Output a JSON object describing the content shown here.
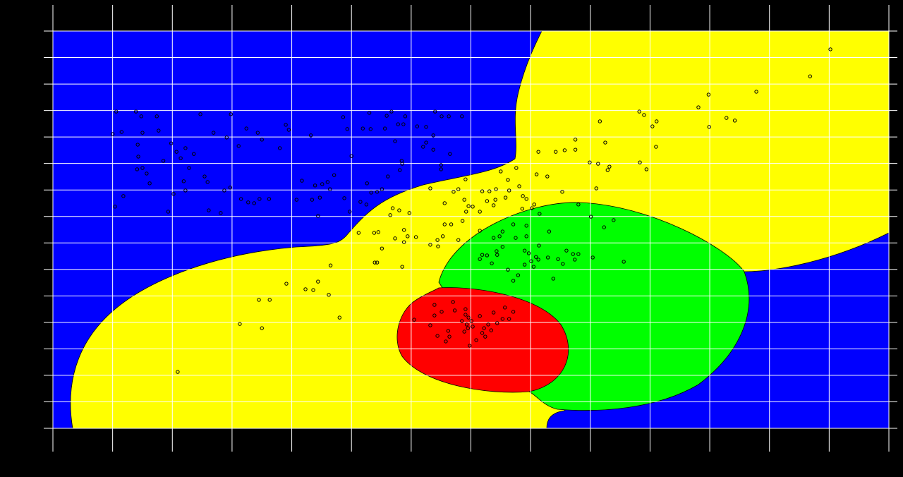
{
  "chart_data": {
    "type": "scatter",
    "x": [
      106,
      139,
      148,
      174,
      100,
      115,
      150,
      177,
      142,
      143,
      141,
      150,
      157,
      162,
      185,
      198,
      207,
      214,
      222,
      228,
      236,
      219,
      222,
      202,
      193,
      118,
      104,
      247,
      269,
      291,
      298,
      324,
      343,
      350,
      311,
      254,
      259,
      287,
      297,
      261,
      281,
      315,
      327,
      337,
      346,
      362,
      380,
      390,
      395,
      432,
      408,
      434,
      447,
      439,
      417,
      451,
      460,
      464,
      471,
      486,
      493,
      500,
      488,
      497,
      444,
      519,
      530,
      532,
      526,
      515,
      525,
      533,
      543,
      551,
      556,
      559,
      567,
      573,
      578,
      587,
      590,
      610,
      625,
      620,
      625,
      637,
      640,
      651,
      663,
      685,
      665,
      650,
      650,
      584,
      585,
      561,
      581,
      637,
      512,
      538,
      545,
      551,
      569,
      580,
      565,
      573,
      588,
      588,
      597,
      594,
      608,
      632,
      645,
      632,
      656,
      671,
      679,
      691,
      692,
      703,
      719,
      731,
      741,
      762,
      781,
      787,
      793,
      806,
      810,
      828,
      842,
      857,
      875,
      875,
      899,
      913,
      916,
      925,
      929,
      932,
      982,
      990,
      983,
      994,
      1004,
      1011,
      1010,
      1081,
      1098,
      1099,
      1128,
      1142,
      1178,
      1268,
      1302,
      813,
      776,
      750,
      742,
      715,
      696,
      686,
      667,
      656,
      653,
      644,
      679,
      738,
      758,
      764,
      727,
      689,
      901,
      923,
      939,
      910,
      880,
      853,
      815,
      802,
      786,
      585,
      543,
      539,
      465,
      391,
      423,
      436,
      444,
      462,
      480,
      345,
      363,
      313,
      350,
      209,
      956,
      715,
      719,
      727,
      735,
      748,
      753,
      743,
      744,
      762,
      771,
      779,
      790,
      790,
      797,
      801,
      805,
      809,
      813,
      814,
      829,
      838,
      846,
      854,
      860,
      871,
      874,
      880,
      904,
      831,
      793,
      771,
      753,
      715,
      738,
      775,
      793,
      605,
      632,
      639,
      639,
      644,
      651,
      658,
      662,
      664,
      670,
      673,
      685,
      691,
      691,
      696,
      693,
      701,
      698,
      703,
      709,
      715,
      719,
      722,
      724,
      729,
      734,
      738,
      744,
      753,
      757,
      771,
      764,
      689,
      695
    ],
    "values": [
      1196,
      1196,
      1178,
      1178,
      1111,
      1119,
      1116,
      1124,
      1071,
      1026,
      978,
      983,
      962,
      925,
      1010,
      1076,
      1044,
      1020,
      1058,
      983,
      1036,
      933,
      898,
      885,
      818,
      877,
      837,
      1186,
      1116,
      1098,
      1186,
      1132,
      1116,
      1090,
      1066,
      951,
      930,
      898,
      909,
      823,
      813,
      866,
      853,
      850,
      866,
      866,
      1058,
      1146,
      1127,
      1106,
      863,
      863,
      871,
      917,
      935,
      922,
      930,
      903,
      956,
      1175,
      1130,
      1028,
      869,
      818,
      802,
      1132,
      1191,
      1130,
      925,
      855,
      845,
      890,
      893,
      903,
      1132,
      1180,
      1196,
      1084,
      1148,
      1148,
      1178,
      1140,
      1138,
      1063,
      1079,
      1052,
      1196,
      1178,
      1178,
      1178,
      1036,
      994,
      978,
      1010,
      999,
      951,
      975,
      1106,
      738,
      738,
      741,
      679,
      831,
      823,
      805,
      717,
      749,
      703,
      813,
      725,
      722,
      693,
      687,
      906,
      850,
      893,
      903,
      940,
      818,
      837,
      895,
      895,
      863,
      938,
      914,
      877,
      866,
      845,
      959,
      951,
      1044,
      1050,
      1090,
      1052,
      1004,
      999,
      1159,
      1079,
      975,
      988,
      1196,
      1183,
      1004,
      978,
      1140,
      1159,
      1063,
      1212,
      1260,
      1138,
      1172,
      1162,
      1271,
      1329,
      1431,
      1044,
      983,
      970,
      903,
      818,
      839,
      783,
      770,
      770,
      725,
      711,
      711,
      842,
      871,
      898,
      858,
      863,
      799,
      759,
      786,
      906,
      845,
      893,
      810,
      831,
      829,
      610,
      626,
      626,
      615,
      546,
      525,
      522,
      554,
      504,
      418,
      485,
      485,
      394,
      378,
      213,
      629,
      639,
      655,
      653,
      623,
      725,
      685,
      669,
      655,
      599,
      557,
      578,
      618,
      671,
      661,
      631,
      610,
      647,
      637,
      690,
      645,
      565,
      639,
      621,
      671,
      658,
      637,
      658,
      645,
      743,
      765,
      770,
      743,
      746,
      719,
      719,
      725,
      410,
      389,
      466,
      426,
      349,
      440,
      328,
      368,
      346,
      477,
      445,
      405,
      450,
      429,
      418,
      392,
      405,
      312,
      384,
      333,
      424,
      360,
      378,
      346,
      392,
      370,
      437,
      397,
      413,
      456,
      440,
      413,
      365,
      378
    ],
    "color": "#000000",
    "xlim": [
      0,
      1400
    ],
    "xticks": [
      0,
      100,
      200,
      300,
      400,
      500,
      600,
      700,
      800,
      900,
      1000,
      1100,
      1200,
      1300,
      1400
    ],
    "ylim": [
      0,
      1500
    ],
    "yticks": [
      0,
      100,
      200,
      300,
      400,
      500,
      600,
      700,
      800,
      900,
      1000,
      1100,
      1200,
      1300,
      1400,
      1500
    ],
    "grid": true
  }
}
